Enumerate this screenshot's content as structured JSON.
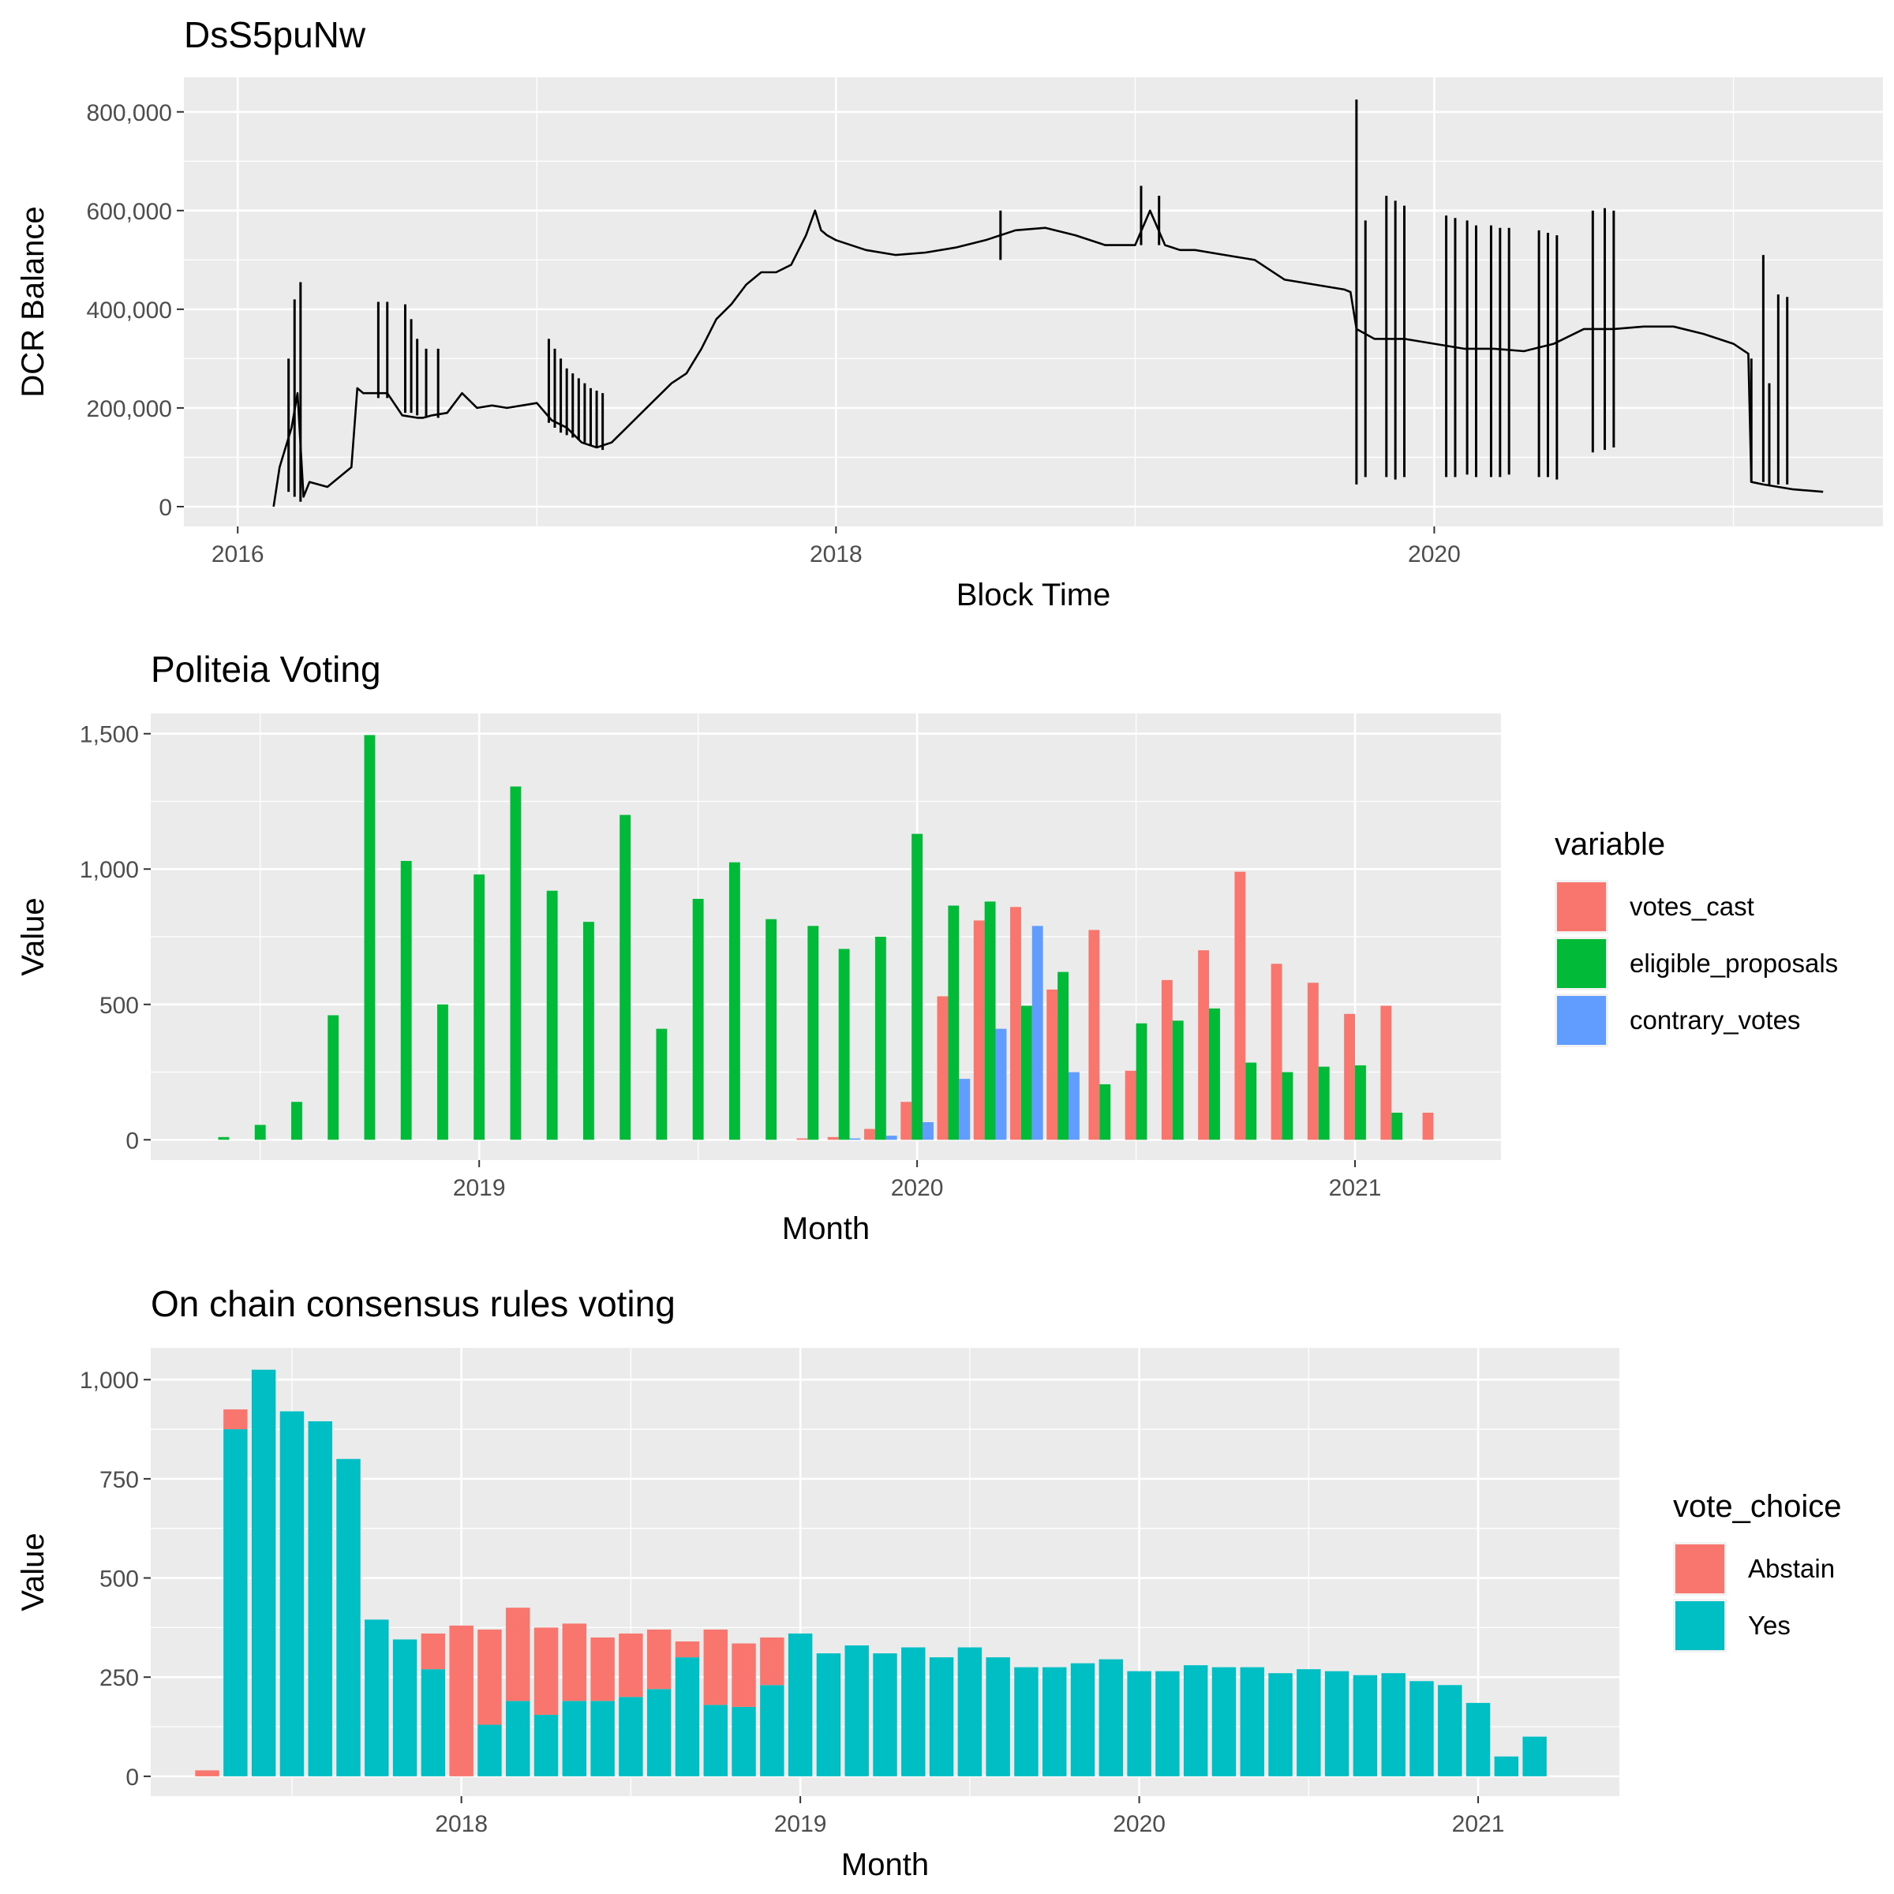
{
  "chart_data": [
    {
      "type": "line",
      "title": "DsS5puNw",
      "xlabel": "Block Time",
      "ylabel": "DCR Balance",
      "x_ticks": [
        "2016",
        "2018",
        "2020"
      ],
      "y_ticks": [
        "0",
        "200,000",
        "400,000",
        "600,000",
        "800,000"
      ],
      "xlim": [
        2015.82,
        2021.5
      ],
      "ylim": [
        -40000,
        870000
      ],
      "color": "#000000",
      "x": [
        2016.12,
        2016.14,
        2016.18,
        2016.2,
        2016.22,
        2016.24,
        2016.3,
        2016.36,
        2016.38,
        2016.4,
        2016.42,
        2016.5,
        2016.55,
        2016.6,
        2016.62,
        2016.65,
        2016.7,
        2016.75,
        2016.8,
        2016.85,
        2016.9,
        2016.95,
        2017.0,
        2017.05,
        2017.1,
        2017.15,
        2017.2,
        2017.25,
        2017.3,
        2017.35,
        2017.4,
        2017.45,
        2017.5,
        2017.55,
        2017.6,
        2017.65,
        2017.7,
        2017.75,
        2017.8,
        2017.85,
        2017.9,
        2017.93,
        2017.95,
        2017.97,
        2018.0,
        2018.1,
        2018.2,
        2018.3,
        2018.4,
        2018.5,
        2018.6,
        2018.7,
        2018.8,
        2018.9,
        2019.0,
        2019.05,
        2019.1,
        2019.15,
        2019.2,
        2019.3,
        2019.4,
        2019.5,
        2019.6,
        2019.7,
        2019.72,
        2019.74,
        2019.8,
        2019.9,
        2020.0,
        2020.1,
        2020.2,
        2020.3,
        2020.4,
        2020.5,
        2020.6,
        2020.7,
        2020.8,
        2020.9,
        2021.0,
        2021.05,
        2021.06,
        2021.1,
        2021.2,
        2021.3
      ],
      "y": [
        0,
        80000,
        160000,
        230000,
        20000,
        50000,
        40000,
        70000,
        80000,
        240000,
        230000,
        230000,
        185000,
        180000,
        180000,
        185000,
        190000,
        230000,
        200000,
        205000,
        200000,
        205000,
        210000,
        175000,
        160000,
        130000,
        120000,
        130000,
        160000,
        190000,
        220000,
        250000,
        270000,
        320000,
        380000,
        410000,
        450000,
        475000,
        475000,
        490000,
        550000,
        600000,
        560000,
        550000,
        540000,
        520000,
        510000,
        515000,
        525000,
        540000,
        560000,
        565000,
        550000,
        530000,
        530000,
        600000,
        530000,
        520000,
        520000,
        510000,
        500000,
        460000,
        450000,
        440000,
        435000,
        360000,
        340000,
        340000,
        330000,
        320000,
        320000,
        315000,
        330000,
        360000,
        360000,
        365000,
        365000,
        350000,
        330000,
        310000,
        50000,
        45000,
        35000,
        30000
      ],
      "spikes": [
        {
          "x": 2016.17,
          "lo": 30000,
          "hi": 300000
        },
        {
          "x": 2016.19,
          "lo": 20000,
          "hi": 420000
        },
        {
          "x": 2016.21,
          "lo": 10000,
          "hi": 455000
        },
        {
          "x": 2016.47,
          "lo": 220000,
          "hi": 415000
        },
        {
          "x": 2016.5,
          "lo": 220000,
          "hi": 415000
        },
        {
          "x": 2016.56,
          "lo": 190000,
          "hi": 410000
        },
        {
          "x": 2016.58,
          "lo": 190000,
          "hi": 380000
        },
        {
          "x": 2016.6,
          "lo": 185000,
          "hi": 340000
        },
        {
          "x": 2016.63,
          "lo": 180000,
          "hi": 320000
        },
        {
          "x": 2016.67,
          "lo": 180000,
          "hi": 320000
        },
        {
          "x": 2017.04,
          "lo": 170000,
          "hi": 340000
        },
        {
          "x": 2017.06,
          "lo": 160000,
          "hi": 320000
        },
        {
          "x": 2017.08,
          "lo": 150000,
          "hi": 300000
        },
        {
          "x": 2017.1,
          "lo": 145000,
          "hi": 280000
        },
        {
          "x": 2017.12,
          "lo": 140000,
          "hi": 270000
        },
        {
          "x": 2017.14,
          "lo": 135000,
          "hi": 260000
        },
        {
          "x": 2017.16,
          "lo": 130000,
          "hi": 250000
        },
        {
          "x": 2017.18,
          "lo": 125000,
          "hi": 240000
        },
        {
          "x": 2017.2,
          "lo": 120000,
          "hi": 235000
        },
        {
          "x": 2017.22,
          "lo": 115000,
          "hi": 230000
        },
        {
          "x": 2018.55,
          "lo": 500000,
          "hi": 600000
        },
        {
          "x": 2019.02,
          "lo": 530000,
          "hi": 650000
        },
        {
          "x": 2019.08,
          "lo": 530000,
          "hi": 630000
        },
        {
          "x": 2019.74,
          "lo": 45000,
          "hi": 825000
        },
        {
          "x": 2019.77,
          "lo": 60000,
          "hi": 580000
        },
        {
          "x": 2019.84,
          "lo": 60000,
          "hi": 630000
        },
        {
          "x": 2019.87,
          "lo": 55000,
          "hi": 620000
        },
        {
          "x": 2019.9,
          "lo": 60000,
          "hi": 610000
        },
        {
          "x": 2020.04,
          "lo": 60000,
          "hi": 590000
        },
        {
          "x": 2020.07,
          "lo": 60000,
          "hi": 585000
        },
        {
          "x": 2020.11,
          "lo": 65000,
          "hi": 580000
        },
        {
          "x": 2020.14,
          "lo": 60000,
          "hi": 570000
        },
        {
          "x": 2020.19,
          "lo": 60000,
          "hi": 570000
        },
        {
          "x": 2020.22,
          "lo": 60000,
          "hi": 565000
        },
        {
          "x": 2020.25,
          "lo": 65000,
          "hi": 565000
        },
        {
          "x": 2020.35,
          "lo": 60000,
          "hi": 560000
        },
        {
          "x": 2020.38,
          "lo": 60000,
          "hi": 555000
        },
        {
          "x": 2020.41,
          "lo": 55000,
          "hi": 550000
        },
        {
          "x": 2020.53,
          "lo": 110000,
          "hi": 600000
        },
        {
          "x": 2020.57,
          "lo": 115000,
          "hi": 605000
        },
        {
          "x": 2020.6,
          "lo": 120000,
          "hi": 600000
        },
        {
          "x": 2021.1,
          "lo": 50000,
          "hi": 510000
        },
        {
          "x": 2021.15,
          "lo": 45000,
          "hi": 430000
        },
        {
          "x": 2021.18,
          "lo": 45000,
          "hi": 425000
        },
        {
          "x": 2021.06,
          "lo": 50000,
          "hi": 300000
        },
        {
          "x": 2021.12,
          "lo": 45000,
          "hi": 250000
        }
      ]
    },
    {
      "type": "bar",
      "title": "Politeia Voting",
      "xlabel": "Month",
      "ylabel": "Value",
      "x_ticks": [
        "2019",
        "2020",
        "2021"
      ],
      "y_ticks": [
        "0",
        "500",
        "1,000",
        "1,500"
      ],
      "ylim": [
        -75,
        1575
      ],
      "legend_title": "variable",
      "legend_position": "right",
      "series": [
        {
          "name": "votes_cast",
          "color": "#F8766D",
          "values": [
            0,
            0,
            0,
            0,
            0,
            0,
            0,
            0,
            0,
            0,
            0,
            0,
            0,
            0,
            0,
            0,
            5,
            10,
            40,
            140,
            530,
            810,
            860,
            555,
            775,
            255,
            590,
            700,
            990,
            650,
            580,
            465,
            495,
            100
          ]
        },
        {
          "name": "eligible_proposals",
          "color": "#00BA38",
          "values": [
            10,
            55,
            140,
            460,
            1495,
            1030,
            500,
            980,
            1305,
            920,
            805,
            1200,
            410,
            890,
            1025,
            815,
            790,
            705,
            750,
            1130,
            865,
            880,
            495,
            620,
            205,
            430,
            440,
            485,
            285,
            250,
            270,
            275,
            100,
            0
          ]
        },
        {
          "name": "contrary_votes",
          "color": "#619CFF",
          "values": [
            0,
            0,
            0,
            0,
            0,
            0,
            0,
            0,
            0,
            0,
            0,
            0,
            0,
            0,
            0,
            0,
            0,
            5,
            15,
            65,
            225,
            410,
            790,
            250,
            0,
            0,
            0,
            0,
            0,
            0,
            0,
            0,
            0,
            0
          ]
        }
      ],
      "months": [
        "2018-06",
        "2018-07",
        "2018-08",
        "2018-09",
        "2018-10",
        "2018-11",
        "2018-12",
        "2019-01",
        "2019-02",
        "2019-03",
        "2019-04",
        "2019-05",
        "2019-06",
        "2019-07",
        "2019-08",
        "2019-09",
        "2019-10",
        "2019-11",
        "2019-12",
        "2020-01",
        "2020-02",
        "2020-03",
        "2020-04",
        "2020-05",
        "2020-06",
        "2020-07",
        "2020-08",
        "2020-09",
        "2020-10",
        "2020-11",
        "2020-12",
        "2021-01",
        "2021-02",
        "2021-03"
      ]
    },
    {
      "type": "bar",
      "title": "On chain consensus rules voting",
      "xlabel": "Month",
      "ylabel": "Value",
      "x_ticks": [
        "2018",
        "2019",
        "2020",
        "2021"
      ],
      "y_ticks": [
        "0",
        "250",
        "500",
        "750",
        "1,000"
      ],
      "ylim": [
        -50,
        1080
      ],
      "legend_title": "vote_choice",
      "legend_position": "right",
      "stacked": true,
      "months": [
        "2017-04",
        "2017-05",
        "2017-06",
        "2017-07",
        "2017-08",
        "2017-09",
        "2017-10",
        "2017-11",
        "2017-12",
        "2018-01",
        "2018-02",
        "2018-03",
        "2018-04",
        "2018-05",
        "2018-06",
        "2018-07",
        "2018-08",
        "2018-09",
        "2018-10",
        "2018-11",
        "2018-12",
        "2019-01",
        "2019-02",
        "2019-03",
        "2019-04",
        "2019-05",
        "2019-06",
        "2019-07",
        "2019-08",
        "2019-09",
        "2019-10",
        "2019-11",
        "2019-12",
        "2020-01",
        "2020-02",
        "2020-03",
        "2020-04",
        "2020-05",
        "2020-06",
        "2020-07",
        "2020-08",
        "2020-09",
        "2020-10",
        "2020-11",
        "2020-12",
        "2021-01",
        "2021-02",
        "2021-03"
      ],
      "series": [
        {
          "name": "Yes",
          "color": "#00BFC4",
          "values": [
            0,
            875,
            1025,
            920,
            895,
            800,
            395,
            345,
            270,
            0,
            130,
            190,
            155,
            190,
            190,
            200,
            220,
            300,
            180,
            175,
            230,
            360,
            310,
            330,
            310,
            325,
            300,
            325,
            300,
            275,
            275,
            285,
            295,
            265,
            265,
            280,
            275,
            275,
            260,
            270,
            265,
            255,
            260,
            240,
            230,
            185,
            50,
            100
          ]
        },
        {
          "name": "Abstain",
          "color": "#F8766D",
          "values": [
            15,
            50,
            0,
            0,
            0,
            0,
            0,
            0,
            90,
            380,
            240,
            235,
            220,
            195,
            160,
            160,
            150,
            40,
            190,
            160,
            120,
            0,
            0,
            0,
            0,
            0,
            0,
            0,
            0,
            0,
            0,
            0,
            0,
            0,
            0,
            0,
            0,
            0,
            0,
            0,
            0,
            0,
            0,
            0,
            0,
            0,
            0,
            0
          ]
        }
      ]
    }
  ]
}
